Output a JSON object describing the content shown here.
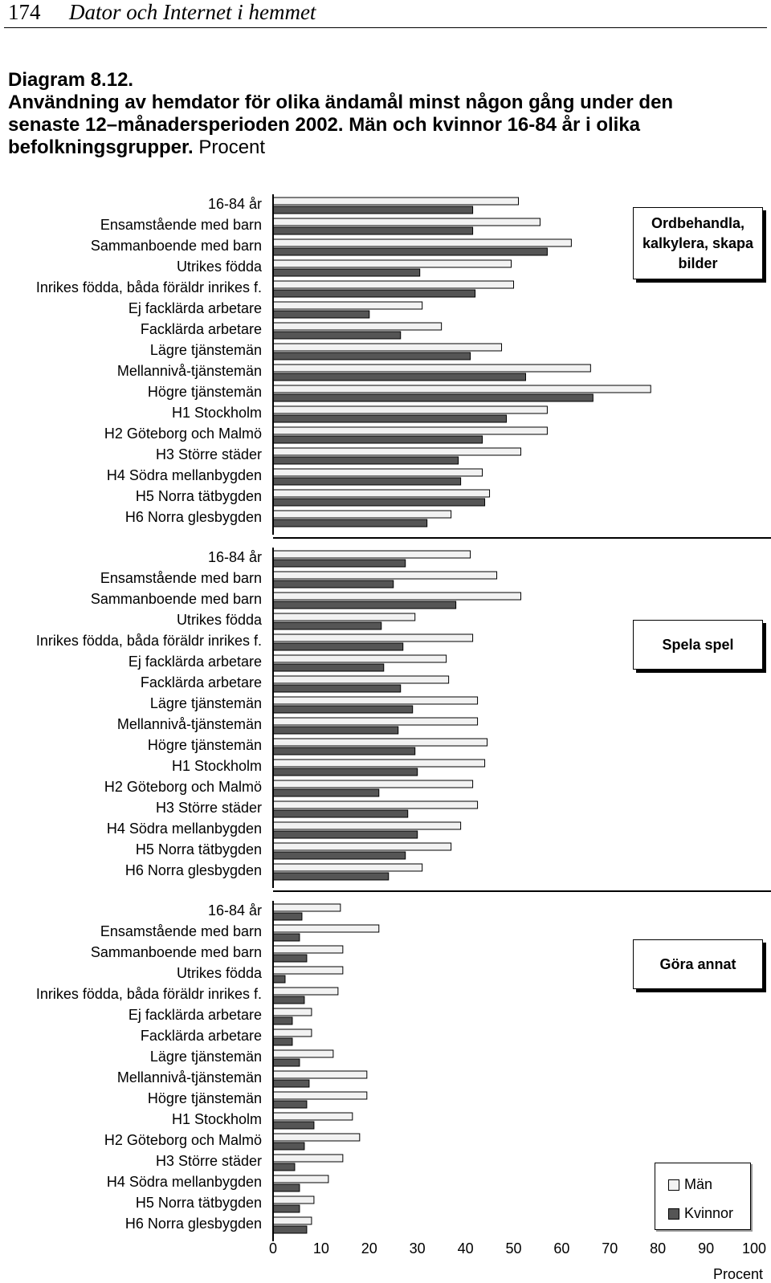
{
  "header": {
    "page_number": "174",
    "running_title": "Dator och Internet i hemmet"
  },
  "caption": {
    "line1": "Diagram 8.12.",
    "line2": "Användning av hemdator för olika ändamål minst någon gång under den",
    "line3": "senaste 12–månadersperioden 2002. Män och kvinnor 16-84 år i olika",
    "line4_bold": "befolkningsgrupper.",
    "line4_plain": "Procent"
  },
  "colors": {
    "man": "#f2f2f2",
    "kvinnor": "#555555",
    "stroke": "#000000"
  },
  "legend": {
    "man": "Män",
    "kvinnor": "Kvinnor"
  },
  "chart_data": {
    "type": "bar",
    "orientation": "horizontal",
    "xlabel": "Procent",
    "xlim": [
      0,
      100
    ],
    "xticks": [
      "0",
      "10",
      "20",
      "30",
      "40",
      "50",
      "60",
      "70",
      "80",
      "90",
      "100"
    ],
    "grid": false,
    "legend_position": "bottom-right",
    "categories": [
      "16-84 år",
      "Ensamstående med barn",
      "Sammanboende med barn",
      "Utrikes födda",
      "Inrikes födda, båda föräldr inrikes f.",
      "Ej facklärda arbetare",
      "Facklärda arbetare",
      "Lägre tjänstemän",
      "Mellannivå-tjänstemän",
      "Högre tjänstemän",
      "H1 Stockholm",
      "H2 Göteborg och Malmö",
      "H3 Större städer",
      "H4 Södra mellanbygden",
      "H5 Norra tätbygden",
      "H6 Norra glesbygden"
    ],
    "panels": [
      {
        "title": "Ordbehandla, kalkylera, skapa bilder",
        "series": [
          {
            "name": "Män",
            "values": [
              51,
              55.5,
              62,
              49.5,
              50,
              31,
              35,
              47.5,
              66,
              78.5,
              57,
              57,
              51.5,
              43.5,
              45,
              37
            ]
          },
          {
            "name": "Kvinnor",
            "values": [
              41.5,
              41.5,
              57,
              30.5,
              42,
              20,
              26.5,
              41,
              52.5,
              66.5,
              48.5,
              43.5,
              38.5,
              39,
              44,
              32
            ]
          }
        ]
      },
      {
        "title": "Spela spel",
        "series": [
          {
            "name": "Män",
            "values": [
              41,
              46.5,
              51.5,
              29.5,
              41.5,
              36,
              36.5,
              42.5,
              42.5,
              44.5,
              44,
              41.5,
              42.5,
              39,
              37,
              31
            ]
          },
          {
            "name": "Kvinnor",
            "values": [
              27.5,
              25,
              38,
              22.5,
              27,
              23,
              26.5,
              29,
              26,
              29.5,
              30,
              22,
              28,
              30,
              27.5,
              24
            ]
          }
        ]
      },
      {
        "title": "Göra annat",
        "series": [
          {
            "name": "Män",
            "values": [
              14,
              22,
              14.5,
              14.5,
              13.5,
              8,
              8,
              12.5,
              19.5,
              19.5,
              16.5,
              18,
              14.5,
              11.5,
              8.5,
              8
            ]
          },
          {
            "name": "Kvinnor",
            "values": [
              6,
              5.5,
              7,
              2.5,
              6.5,
              4,
              4,
              5.5,
              7.5,
              7,
              8.5,
              6.5,
              4.5,
              5.5,
              5.5,
              7
            ]
          }
        ]
      }
    ]
  }
}
